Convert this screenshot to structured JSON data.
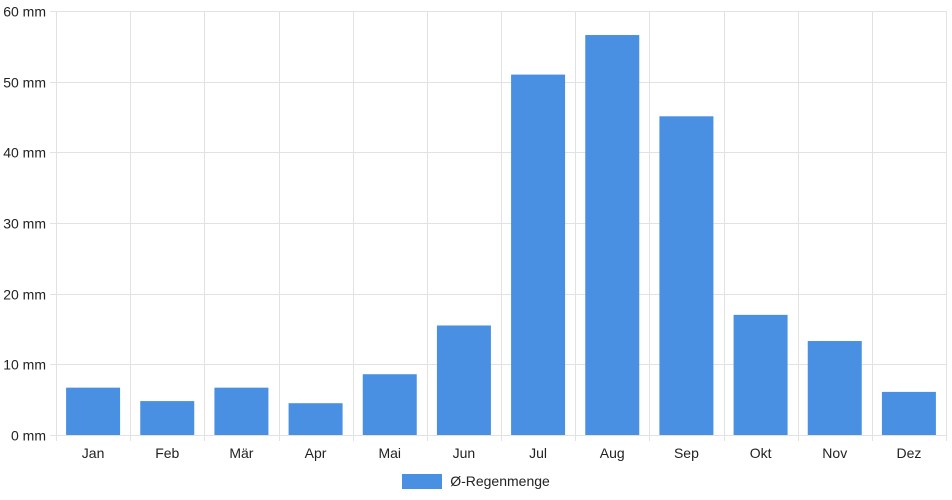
{
  "chart_data": {
    "type": "bar",
    "categories": [
      "Jan",
      "Feb",
      "Mär",
      "Apr",
      "Mai",
      "Jun",
      "Jul",
      "Aug",
      "Sep",
      "Okt",
      "Nov",
      "Dez"
    ],
    "series": [
      {
        "name": "Ø-Regenmenge",
        "values": [
          6.7,
          4.8,
          6.7,
          4.5,
          8.6,
          15.5,
          51.0,
          56.6,
          45.1,
          17.0,
          13.3,
          6.1
        ],
        "color": "#4a90e2"
      }
    ],
    "ylim": [
      0,
      60
    ],
    "yticks": [
      "0 mm",
      "10 mm",
      "20 mm",
      "30 mm",
      "40 mm",
      "50 mm",
      "60 mm"
    ],
    "ytick_values": [
      0,
      10,
      20,
      30,
      40,
      50,
      60
    ],
    "grid": true,
    "legend_position": "bottom",
    "gridline_color": "#e2e2e2"
  }
}
